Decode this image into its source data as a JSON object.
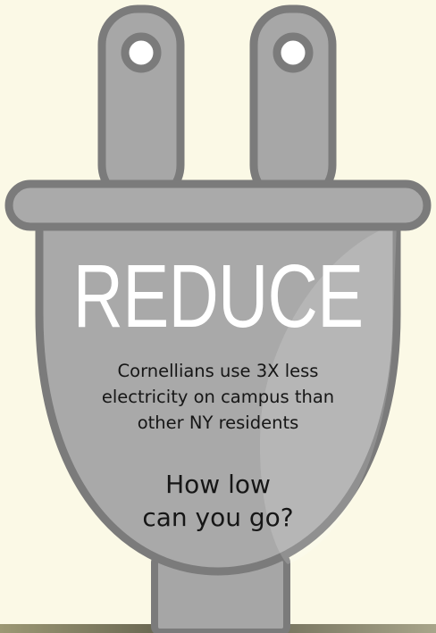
{
  "colors": {
    "background": "#fbf9e6",
    "plug_fill": "#a9a9a9",
    "plug_outline": "#7b7b7b",
    "headline_text": "#ffffff",
    "body_text": "#161616",
    "bottom_strip": "#6e6b55"
  },
  "icon": "electric-plug-icon",
  "headline": "REDUCE",
  "fact_lines": [
    "Cornellians use 3X less",
    "electricity on campus than",
    "other NY residents"
  ],
  "question_lines": [
    "How low",
    "can you go?"
  ]
}
